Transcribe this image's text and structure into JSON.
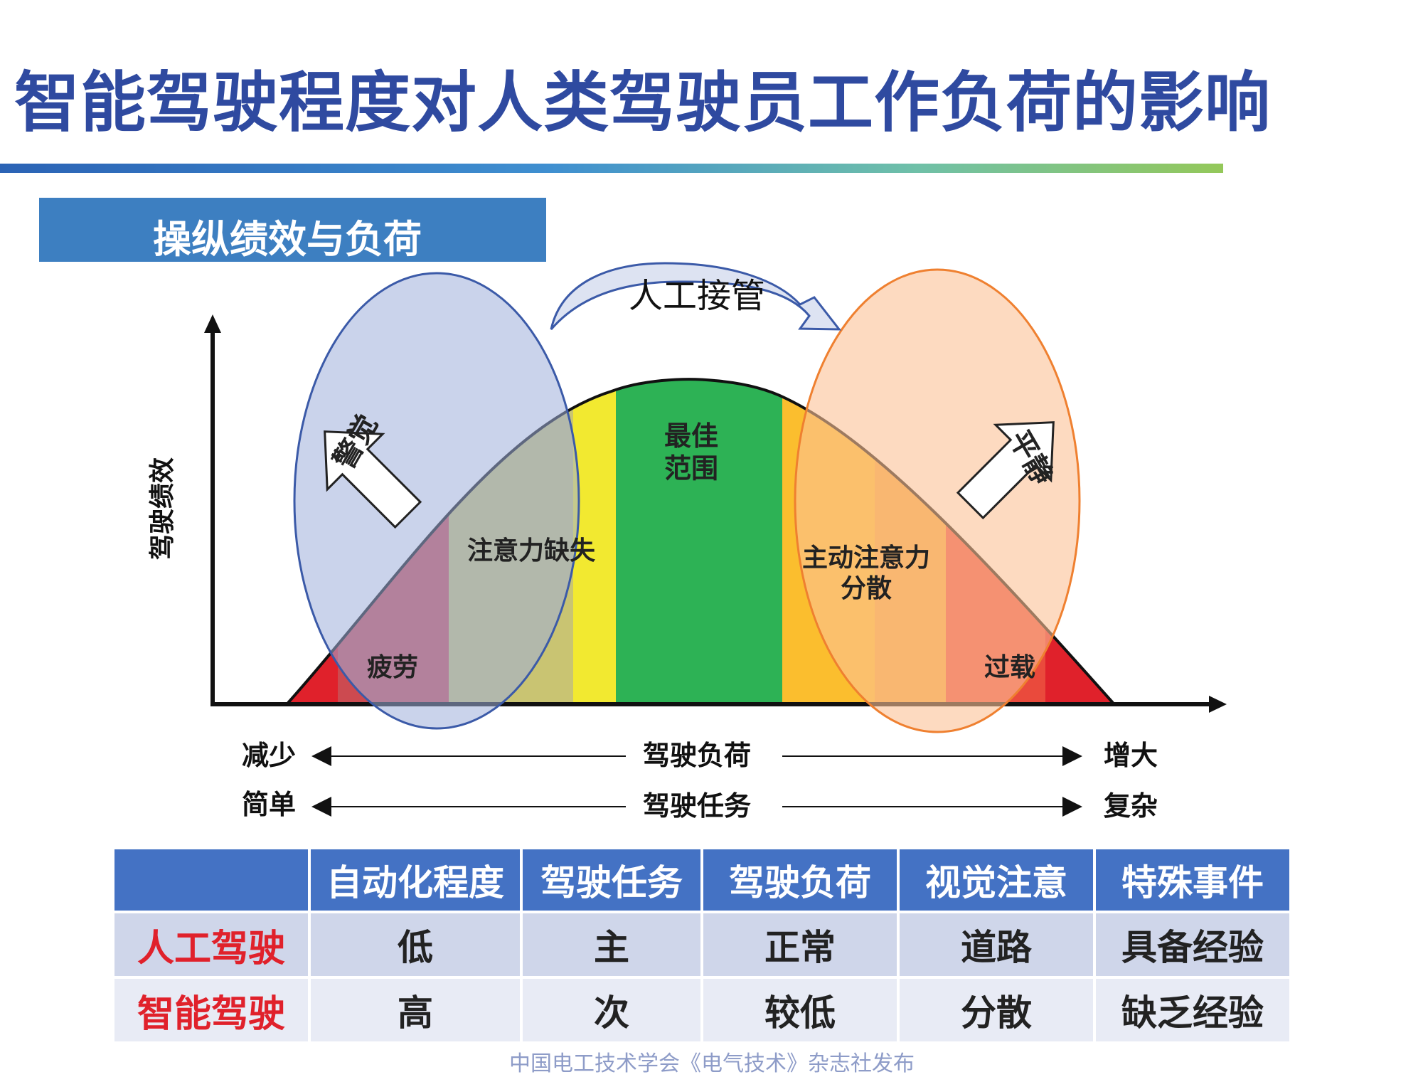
{
  "title": "智能驾驶程度对人类驾驶员工作负荷的影响",
  "section_title": "操纵绩效与负荷",
  "diagram": {
    "takeover_label": "人工接管",
    "y_axis_label": "驾驶绩效",
    "alert_label": "警觉",
    "calm_label": "平静",
    "zones": [
      {
        "label": "疲劳",
        "color": "#cc4a50"
      },
      {
        "label": "注意力缺失",
        "color": "#c9c472"
      },
      {
        "label": "",
        "color": "#f2e930"
      },
      {
        "label": "最佳\n范围",
        "color": "#2db255"
      },
      {
        "label": "",
        "color": "#fbbe2e"
      },
      {
        "label": "主动注意力\n分散",
        "color": "#f6a83a"
      },
      {
        "label": "过载",
        "color": "#ea4a3c"
      }
    ],
    "edge_color_left": "#e0212b",
    "alert_ellipse_color": "#3b5aa8",
    "calm_ellipse_color": "#ef8030",
    "scale_rows": [
      {
        "left": "减少",
        "center": "驾驶负荷",
        "right": "增大"
      },
      {
        "left": "简单",
        "center": "驾驶任务",
        "right": "复杂"
      }
    ]
  },
  "table": {
    "headers": [
      "",
      "自动化程度",
      "驾驶任务",
      "驾驶负荷",
      "视觉注意",
      "特殊事件"
    ],
    "rows": [
      {
        "label": "人工驾驶",
        "cells": [
          "低",
          "主",
          "正常",
          "道路",
          "具备经验"
        ]
      },
      {
        "label": "智能驾驶",
        "cells": [
          "高",
          "次",
          "较低",
          "分散",
          "缺乏经验"
        ]
      }
    ],
    "header_color": "#4472c4",
    "row_label_color": "#e0212b"
  },
  "footer": "中国电工技术学会《电气技术》杂志社发布"
}
